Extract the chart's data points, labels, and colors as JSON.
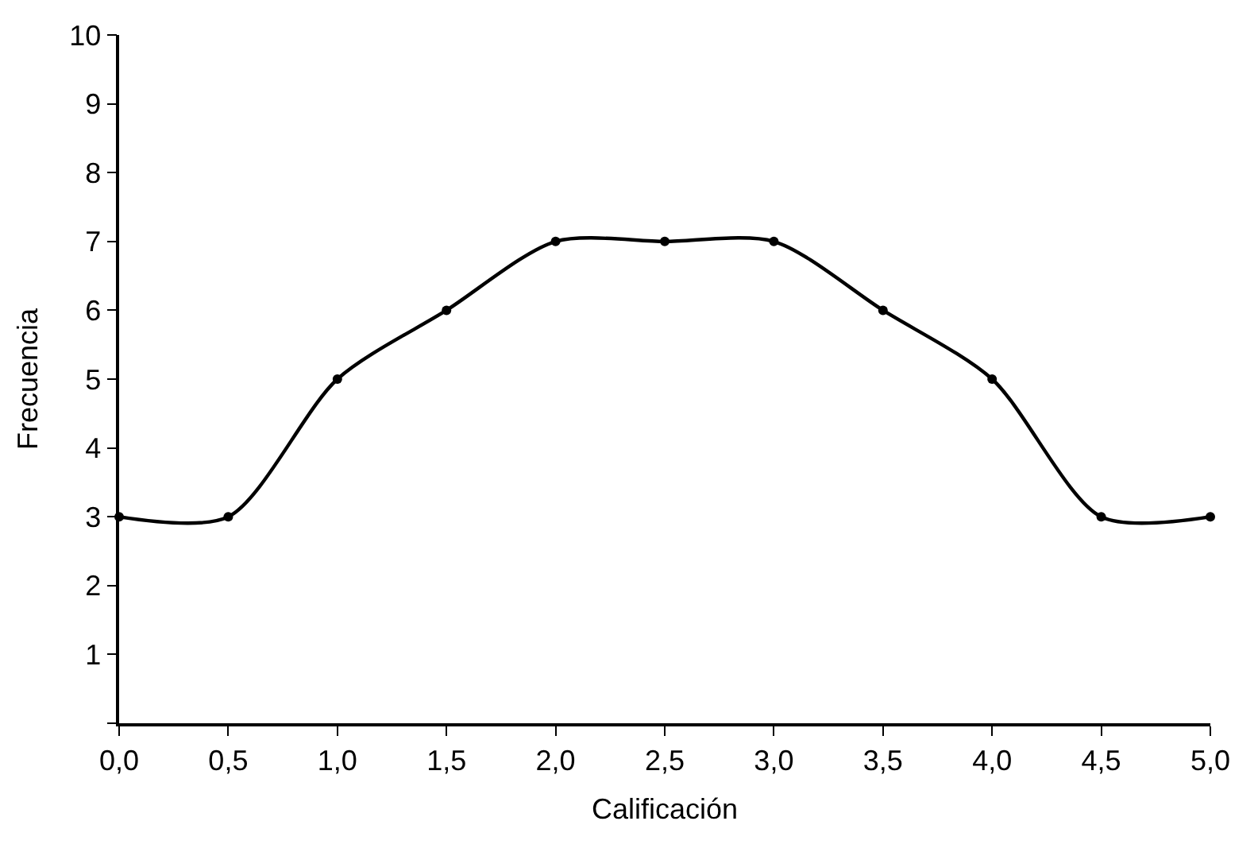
{
  "chart_data": {
    "type": "line",
    "xlabel": "Calificación",
    "ylabel": "Frecuencia",
    "categories": [
      "0,0",
      "0,5",
      "1,0",
      "1,5",
      "2,0",
      "2,5",
      "3,0",
      "3,5",
      "4,0",
      "4,5",
      "5,0"
    ],
    "series": [
      {
        "color": "#000000",
        "values": [
          3,
          3,
          5,
          6,
          7,
          7,
          7,
          6,
          5,
          3,
          3
        ]
      }
    ],
    "ylim": [
      0,
      10
    ],
    "yticks": [
      {
        "value": 0,
        "label": null
      },
      1,
      2,
      3,
      4,
      5,
      6,
      7,
      8,
      9,
      10
    ],
    "legend": false,
    "marker": "circle",
    "line_style": "solid"
  }
}
